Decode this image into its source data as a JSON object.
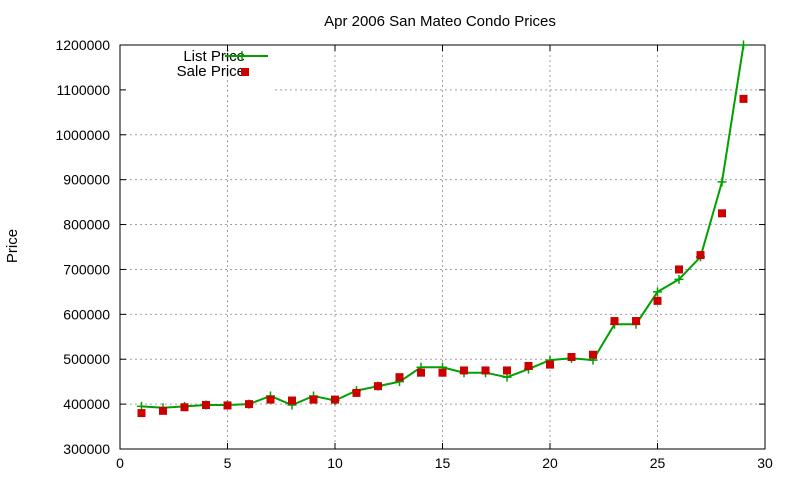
{
  "chart_data": {
    "type": "line",
    "title": "Apr 2006 San Mateo Condo Prices",
    "xlabel": "",
    "ylabel": "Price",
    "xlim": [
      0,
      30
    ],
    "ylim": [
      300000,
      1200000
    ],
    "xticks": [
      0,
      5,
      10,
      15,
      20,
      25,
      30
    ],
    "yticks": [
      300000,
      400000,
      500000,
      600000,
      700000,
      800000,
      900000,
      1000000,
      1100000,
      1200000
    ],
    "grid": true,
    "legend_position": "top-left",
    "series": [
      {
        "name": "List Price",
        "style": "line-with-plus-markers",
        "color": "#00a000",
        "x": [
          1,
          2,
          3,
          4,
          5,
          6,
          7,
          8,
          9,
          10,
          11,
          12,
          13,
          14,
          15,
          16,
          17,
          18,
          19,
          20,
          21,
          22,
          23,
          24,
          25,
          26,
          27,
          28,
          29
        ],
        "values": [
          395000,
          392000,
          395000,
          398000,
          398000,
          400000,
          418000,
          398000,
          418000,
          408000,
          430000,
          440000,
          450000,
          482000,
          482000,
          470000,
          470000,
          460000,
          478000,
          498000,
          502000,
          498000,
          578000,
          578000,
          650000,
          678000,
          728000,
          895000,
          1200000
        ]
      },
      {
        "name": "Sale Price",
        "style": "square-markers",
        "color": "#cc0000",
        "x": [
          1,
          2,
          3,
          4,
          5,
          6,
          7,
          8,
          9,
          10,
          11,
          12,
          13,
          14,
          15,
          16,
          17,
          18,
          19,
          20,
          21,
          22,
          23,
          24,
          25,
          26,
          27,
          28,
          29
        ],
        "values": [
          380000,
          385000,
          393000,
          398000,
          397000,
          400000,
          410000,
          408000,
          410000,
          410000,
          425000,
          440000,
          460000,
          470000,
          470000,
          475000,
          475000,
          475000,
          485000,
          488000,
          505000,
          510000,
          585000,
          585000,
          630000,
          700000,
          732000,
          825000,
          1080000
        ]
      }
    ]
  }
}
